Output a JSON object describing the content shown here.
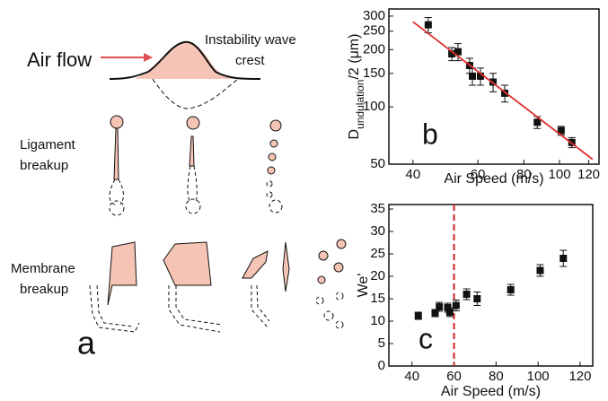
{
  "diagram": {
    "air_flow": "Air flow",
    "crest": [
      "Instability wave",
      "crest"
    ],
    "ligament": [
      "Ligament",
      "breakup"
    ],
    "membrane": [
      "Membrane",
      "breakup"
    ],
    "panel": "a"
  },
  "chart_data": [
    {
      "type": "scatter",
      "panel": "b",
      "xlabel": "Air Speed (m/s)",
      "ylabel": [
        "D",
        "undulation",
        "/2 (μm)"
      ],
      "xscale": "log",
      "yscale": "log",
      "xlim": [
        34.4,
        128
      ],
      "ylim": [
        50,
        327
      ],
      "xticks": [
        40,
        60,
        80,
        100,
        120
      ],
      "yticks": [
        50,
        100,
        150,
        200,
        250,
        300
      ],
      "series": [
        {
          "color": "#111111",
          "x": [
            44,
            51,
            53,
            57,
            58,
            61,
            66,
            71,
            87,
            101,
            108
          ],
          "values": [
            270,
            190,
            195,
            165,
            145,
            145,
            135,
            118,
            83,
            75,
            65
          ],
          "error": [
            25,
            15,
            20,
            15,
            15,
            15,
            15,
            12,
            6,
            4,
            4
          ]
        },
        {
          "type": "line",
          "color": "#e03030",
          "x": [
            40,
            123
          ],
          "values": [
            280,
            53
          ]
        }
      ]
    },
    {
      "type": "scatter",
      "panel": "c",
      "xlabel": "Air Speed (m/s)",
      "ylabel": [
        "We'"
      ],
      "xlim": [
        29,
        126
      ],
      "ylim": [
        0,
        36
      ],
      "xticks": [
        40,
        60,
        80,
        100,
        120
      ],
      "yticks": [
        0,
        5,
        10,
        15,
        20,
        25,
        30,
        35
      ],
      "vline": 60,
      "vline_color": "#d02020",
      "series": [
        {
          "color": "#111111",
          "x": [
            43,
            51,
            53,
            57,
            58,
            61,
            66,
            71,
            87,
            101,
            112
          ],
          "values": [
            11.2,
            11.8,
            13.2,
            13,
            12,
            13.5,
            16,
            15,
            17,
            21.3,
            24
          ],
          "error": [
            0.8,
            0.8,
            1,
            1,
            1,
            1.2,
            1.2,
            1.5,
            1.2,
            1.3,
            1.8
          ]
        }
      ]
    }
  ]
}
